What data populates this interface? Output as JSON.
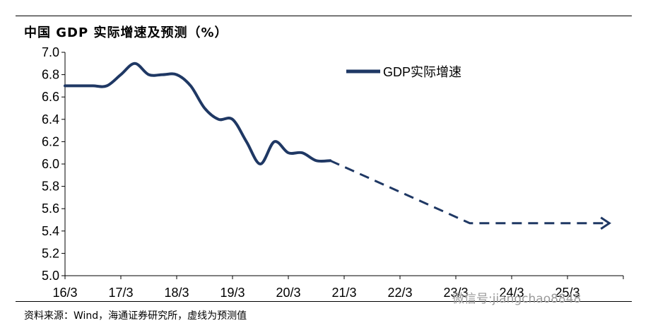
{
  "title": "中国 GDP 实际增速及预测（%）",
  "source": "资料来源：Wind，海通证券研究所，虚线为预测值",
  "watermark": "微信号:jiangchao8848",
  "colors": {
    "line": "#1f3864",
    "axis": "#000000"
  },
  "chart_data": {
    "type": "line",
    "title": "中国 GDP 实际增速及预测（%）",
    "xlabel": "",
    "ylabel": "",
    "ylim": [
      5.0,
      7.0
    ],
    "yticks": [
      "7.0",
      "6.8",
      "6.6",
      "6.4",
      "6.2",
      "6.0",
      "5.8",
      "5.6",
      "5.4",
      "5.2",
      "5.0"
    ],
    "categories": [
      "16/3",
      "17/3",
      "18/3",
      "19/3",
      "20/3",
      "21/3",
      "22/3",
      "23/3",
      "24/3",
      "25/3"
    ],
    "legend": {
      "position": "top-right",
      "entries": [
        "GDP实际增速"
      ]
    },
    "grid": false,
    "series": [
      {
        "name": "GDP实际增速",
        "style": "solid",
        "x": [
          0,
          0.25,
          0.5,
          0.75,
          1.0,
          1.25,
          1.5,
          1.75,
          2.0,
          2.25,
          2.5,
          2.75,
          3.0,
          3.25,
          3.5,
          3.75,
          4.0,
          4.25,
          4.5,
          4.75
        ],
        "values": [
          6.7,
          6.7,
          6.7,
          6.7,
          6.8,
          6.9,
          6.8,
          6.8,
          6.8,
          6.7,
          6.5,
          6.4,
          6.4,
          6.2,
          6.0,
          6.2,
          6.1,
          6.1,
          6.03,
          6.03
        ]
      },
      {
        "name": "",
        "style": "dashed",
        "x": [
          4.75,
          7.25,
          9.75
        ],
        "values": [
          6.03,
          5.47,
          5.47
        ]
      }
    ]
  }
}
